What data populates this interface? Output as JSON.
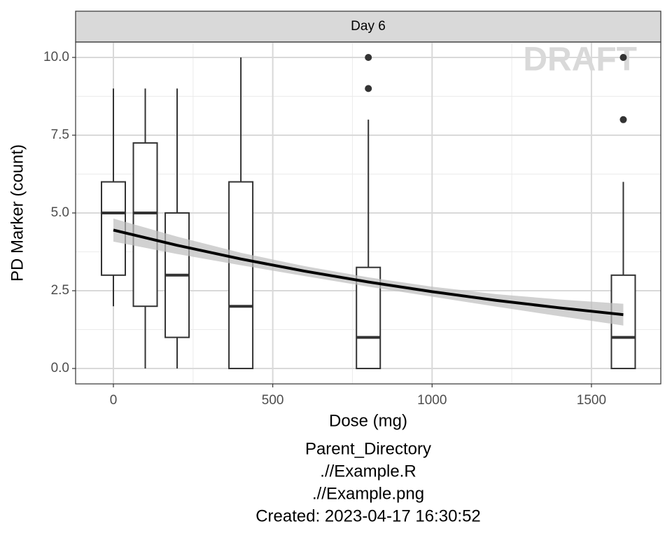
{
  "chart_data": {
    "type": "boxplot",
    "facet": "Day 6",
    "watermark": "DRAFT",
    "x_label": "Dose (mg)",
    "y_label": "PD Marker (count)",
    "caption": [
      "Parent_Directory",
      ".//Example.R",
      ".//Example.png",
      "Created: 2023-04-17 16:30:52"
    ],
    "x": [
      0,
      100,
      200,
      400,
      800,
      1600
    ],
    "whisker_low": [
      2,
      0,
      0,
      0,
      0,
      0
    ],
    "q1": [
      3,
      2,
      1,
      0,
      0,
      0
    ],
    "median": [
      5,
      5,
      3,
      2,
      1,
      1
    ],
    "q3": [
      6,
      7.25,
      5,
      6,
      3.25,
      3
    ],
    "whisker_high": [
      9,
      9,
      9,
      10,
      8,
      6
    ],
    "outliers": [
      [],
      [],
      [],
      [],
      [
        9,
        10
      ],
      [
        8,
        10
      ]
    ],
    "smooth": {
      "x": [
        0,
        200,
        400,
        600,
        800,
        1000,
        1200,
        1400,
        1600
      ],
      "values": [
        4.45,
        3.96,
        3.52,
        3.13,
        2.78,
        2.47,
        2.19,
        1.95,
        1.73
      ],
      "lower": [
        4.08,
        3.68,
        3.32,
        2.97,
        2.63,
        2.31,
        1.99,
        1.68,
        1.38
      ],
      "upper": [
        4.82,
        4.24,
        3.72,
        3.29,
        2.93,
        2.63,
        2.39,
        2.22,
        2.08
      ],
      "color": "#000000",
      "band_color": "#bebebe"
    },
    "box_color": "#333333",
    "xlim": [
      -118.6,
      1717.6
    ],
    "ylim": [
      -0.495,
      10.495
    ],
    "xticks": [
      0,
      500,
      1000,
      1500
    ],
    "xminor": [
      250,
      750,
      1250
    ],
    "yticks": [
      {
        "value": 0,
        "label": "0.0"
      },
      {
        "value": 2.5,
        "label": "2.5"
      },
      {
        "value": 5,
        "label": "5.0"
      },
      {
        "value": 7.5,
        "label": "7.5"
      },
      {
        "value": 10,
        "label": "10.0"
      }
    ],
    "yminor": [
      1.25,
      3.75,
      6.25,
      8.75
    ],
    "grid": true
  }
}
